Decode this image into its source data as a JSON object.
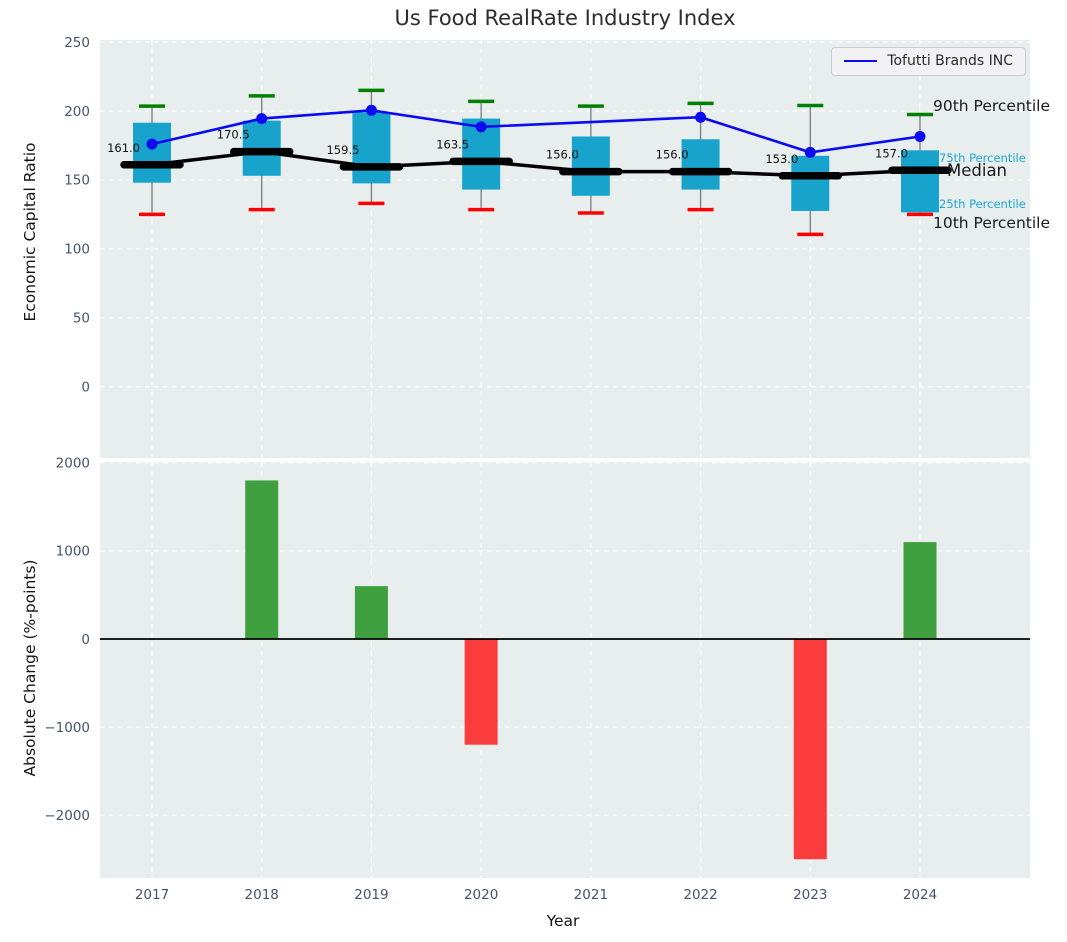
{
  "chart_data": [
    {
      "type": "box",
      "title": "Us Food RealRate Industry Index",
      "ylabel": "Economic Capital Ratio",
      "xlabel": "",
      "ylim": [
        -51.7,
        251.5
      ],
      "yticks": [
        250,
        200,
        150,
        100,
        50,
        0
      ],
      "grid": true,
      "categories": [
        "2017",
        "2018",
        "2019",
        "2020",
        "2021",
        "2022",
        "2023",
        "2024"
      ],
      "legend": {
        "label": "Tofutti Brands INC",
        "position": "upper right",
        "line_color": "#0b0bf0"
      },
      "boxes": [
        {
          "year": "2017",
          "p10": 125,
          "p25": 148,
          "median": 161.0,
          "p75": 191.5,
          "p90": 203.5,
          "median_label": "161.0"
        },
        {
          "year": "2018",
          "p10": 128.5,
          "p25": 153,
          "median": 170.5,
          "p75": 193,
          "p90": 211,
          "median_label": "170.5"
        },
        {
          "year": "2019",
          "p10": 133,
          "p25": 147.5,
          "median": 159.5,
          "p75": 199,
          "p90": 215,
          "median_label": "159.5"
        },
        {
          "year": "2020",
          "p10": 128.5,
          "p25": 143,
          "median": 163.5,
          "p75": 194.5,
          "p90": 207,
          "median_label": "163.5"
        },
        {
          "year": "2021",
          "p10": 126,
          "p25": 138.5,
          "median": 156.0,
          "p75": 181.5,
          "p90": 203.5,
          "median_label": "156.0"
        },
        {
          "year": "2022",
          "p10": 128.5,
          "p25": 143,
          "median": 156.0,
          "p75": 179.5,
          "p90": 205.5,
          "median_label": "156.0"
        },
        {
          "year": "2023",
          "p10": 110.5,
          "p25": 127.5,
          "median": 153.0,
          "p75": 167.5,
          "p90": 204,
          "median_label": "153.0"
        },
        {
          "year": "2024",
          "p10": 125,
          "p25": 126.5,
          "median": 157.0,
          "p75": 171.5,
          "p90": 197.5,
          "median_label": "157.0"
        }
      ],
      "series": [
        {
          "name": "Tofutti Brands INC",
          "color": "#0b0bf0",
          "values": [
            176,
            194.5,
            200.5,
            188.5,
            null,
            195.5,
            170,
            181.5
          ]
        },
        {
          "name": "Median",
          "color": "#000000",
          "values": [
            161.0,
            170.5,
            159.5,
            163.5,
            156.0,
            156.0,
            153.0,
            157.0
          ]
        }
      ],
      "annotations": [
        {
          "text": "90th Percentile",
          "value": 204,
          "color": "#1a1a1a",
          "size": "large"
        },
        {
          "text": "75th Percentile",
          "value": 166,
          "color": "#1fa6d6",
          "size": "small"
        },
        {
          "text": "Median",
          "value": 157,
          "color": "#1a1a1a",
          "size": "xlarge"
        },
        {
          "text": "25th Percentile",
          "value": 132.5,
          "color": "#1fa6d6",
          "size": "small"
        },
        {
          "text": "10th Percentile",
          "value": 119,
          "color": "#1a1a1a",
          "size": "large"
        }
      ],
      "colors": {
        "box_fill": "#17a3cb",
        "whisker": "#7a7a7a",
        "cap_top": "#008000",
        "cap_bottom": "#ff0000",
        "median_line": "#000000",
        "axes_bg": "#e8edee",
        "grid": "#ffffff",
        "tick_label": "#44546a"
      }
    },
    {
      "type": "bar",
      "ylabel": "Absolute Change (%-points)",
      "xlabel": "Year",
      "ylim": [
        -2713,
        2009
      ],
      "yticks": [
        2000,
        1000,
        0,
        -1000,
        -2000
      ],
      "grid": true,
      "categories": [
        "2017",
        "2018",
        "2019",
        "2020",
        "2021",
        "2022",
        "2023",
        "2024"
      ],
      "values": [
        0,
        1800,
        600,
        -1200,
        0,
        0,
        -2500,
        1100
      ],
      "colors": {
        "positive": "#3fa03f",
        "negative": "#fa3c3c",
        "zero_line": "#000000",
        "axes_bg": "#e8edee",
        "grid": "#ffffff",
        "tick_label": "#44546a"
      }
    }
  ]
}
